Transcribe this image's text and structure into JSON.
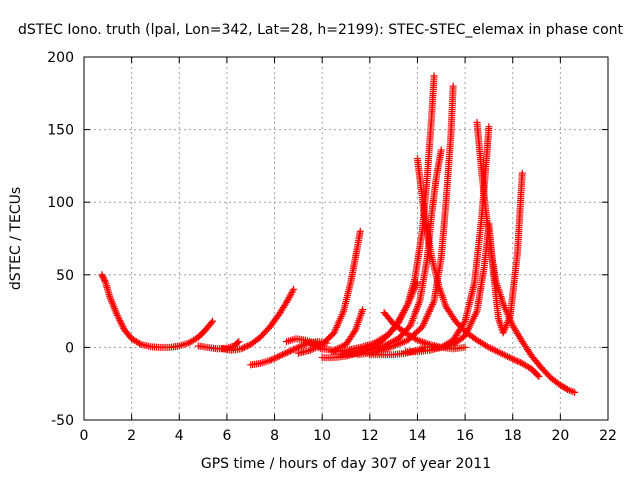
{
  "chart_data": {
    "type": "scatter",
    "title": "dSTEC Iono. truth (lpal, Lon=342, Lat=28, h=2199): STEC-STEC_elemax in phase cont",
    "xlabel": "GPS time / hours of day 307 of year 2011",
    "ylabel": "dSTEC  / TECUs",
    "xlim": [
      0,
      22
    ],
    "ylim": [
      -50,
      200
    ],
    "xticks": [
      "0",
      "2",
      "4",
      "6",
      "8",
      "10",
      "12",
      "14",
      "16",
      "18",
      "20",
      "22"
    ],
    "yticks": [
      "-50",
      "0",
      "50",
      "100",
      "150",
      "200"
    ],
    "grid": true,
    "marker": "plus",
    "color": "#ff0000",
    "series": [
      {
        "x": [
          0.75,
          0.9,
          1.1,
          1.4,
          1.7,
          2.0,
          2.4,
          2.8,
          3.2,
          3.6,
          4.0,
          4.4,
          4.8,
          5.1,
          5.4
        ],
        "y": [
          50,
          45,
          34,
          22,
          12,
          6,
          2,
          0.5,
          0,
          0,
          1,
          3,
          7,
          12,
          18
        ]
      },
      {
        "x": [
          4.8,
          5.2,
          5.6,
          6.0,
          6.3,
          6.5
        ],
        "y": [
          1,
          0,
          -1,
          -0.5,
          1,
          4
        ]
      },
      {
        "x": [
          5.8,
          6.2,
          6.6,
          7.0,
          7.4,
          7.8,
          8.2,
          8.5,
          8.8
        ],
        "y": [
          -1,
          -2,
          -1,
          2,
          7,
          14,
          23,
          31,
          40
        ]
      },
      {
        "x": [
          7.0,
          7.4,
          7.8,
          8.2,
          8.6,
          9.0,
          9.4,
          9.8,
          10.2
        ],
        "y": [
          -12,
          -11,
          -9,
          -6,
          -3,
          0,
          3,
          4,
          3
        ]
      },
      {
        "x": [
          8.5,
          8.9,
          9.3,
          9.7,
          10.0
        ],
        "y": [
          4,
          6,
          5,
          3,
          1
        ]
      },
      {
        "x": [
          9.0,
          9.5,
          10.0,
          10.5,
          10.9,
          11.2,
          11.4,
          11.6
        ],
        "y": [
          -4,
          -2,
          2,
          10,
          25,
          45,
          62,
          80
        ]
      },
      {
        "x": [
          9.5,
          10.0,
          10.5,
          11.0,
          11.4,
          11.7
        ],
        "y": [
          2,
          -1,
          -2,
          2,
          12,
          26
        ]
      },
      {
        "x": [
          10.0,
          10.5,
          11.0,
          11.5,
          12.0,
          12.3,
          12.6,
          12.9,
          13.2,
          13.6,
          14.0
        ],
        "y": [
          -7,
          -7,
          -6,
          -4,
          -1,
          2,
          6,
          11,
          18,
          30,
          45
        ]
      },
      {
        "x": [
          10.4,
          11.0,
          11.6,
          12.2,
          12.8,
          13.2,
          13.6,
          13.9,
          14.2,
          14.4,
          14.6,
          14.7
        ],
        "y": [
          -3,
          -2,
          0,
          3,
          9,
          17,
          30,
          48,
          80,
          115,
          160,
          187
        ]
      },
      {
        "x": [
          10.8,
          11.4,
          12.0,
          12.6,
          13.2,
          13.7,
          14.1,
          14.4,
          14.6,
          14.8,
          15.0
        ],
        "y": [
          -5,
          -4,
          -2,
          1,
          6,
          15,
          32,
          60,
          92,
          118,
          136
        ]
      },
      {
        "x": [
          11.5,
          12.0,
          12.5,
          13.0,
          13.6,
          14.2,
          14.7,
          15.0,
          15.2,
          15.4,
          15.5
        ],
        "y": [
          -5,
          -4,
          -2,
          1,
          5,
          14,
          32,
          62,
          100,
          145,
          180
        ]
      },
      {
        "x": [
          12.0,
          12.5,
          13.0,
          13.5,
          14.0,
          14.3
        ],
        "y": [
          -5,
          -5,
          -5,
          -4,
          -2,
          0
        ]
      },
      {
        "x": [
          12.6,
          13.0,
          13.5,
          14.0,
          14.5,
          15.0,
          15.5,
          16.0
        ],
        "y": [
          24,
          16,
          10,
          5,
          2,
          0,
          -1,
          0
        ]
      },
      {
        "x": [
          13.5,
          14.0,
          14.5,
          15.0,
          15.5,
          16.0,
          16.4,
          16.7,
          16.9,
          17.0
        ],
        "y": [
          -3,
          -3,
          -2,
          0,
          5,
          18,
          45,
          90,
          130,
          152
        ]
      },
      {
        "x": [
          14.0,
          14.3,
          14.6,
          14.9,
          15.2,
          15.6,
          16.0,
          16.5,
          17.0,
          17.5,
          18.0,
          18.4,
          18.8,
          19.1
        ],
        "y": [
          130,
          90,
          62,
          42,
          28,
          18,
          11,
          5,
          0,
          -4,
          -8,
          -11,
          -15,
          -20
        ]
      },
      {
        "x": [
          14.5,
          15.0,
          15.5,
          16.0,
          16.5,
          16.8,
          17.0,
          17.2,
          17.4,
          17.6,
          17.9,
          18.2,
          18.4
        ],
        "y": [
          0,
          0,
          2,
          8,
          25,
          55,
          85,
          50,
          20,
          10,
          22,
          65,
          120
        ]
      },
      {
        "x": [
          16.5,
          16.7,
          16.9,
          17.1,
          17.3,
          17.6,
          18.0,
          18.4,
          18.8,
          19.2,
          19.6,
          20.0,
          20.3,
          20.6
        ],
        "y": [
          155,
          120,
          90,
          65,
          45,
          30,
          15,
          4,
          -6,
          -14,
          -21,
          -26,
          -29,
          -31
        ]
      }
    ]
  }
}
